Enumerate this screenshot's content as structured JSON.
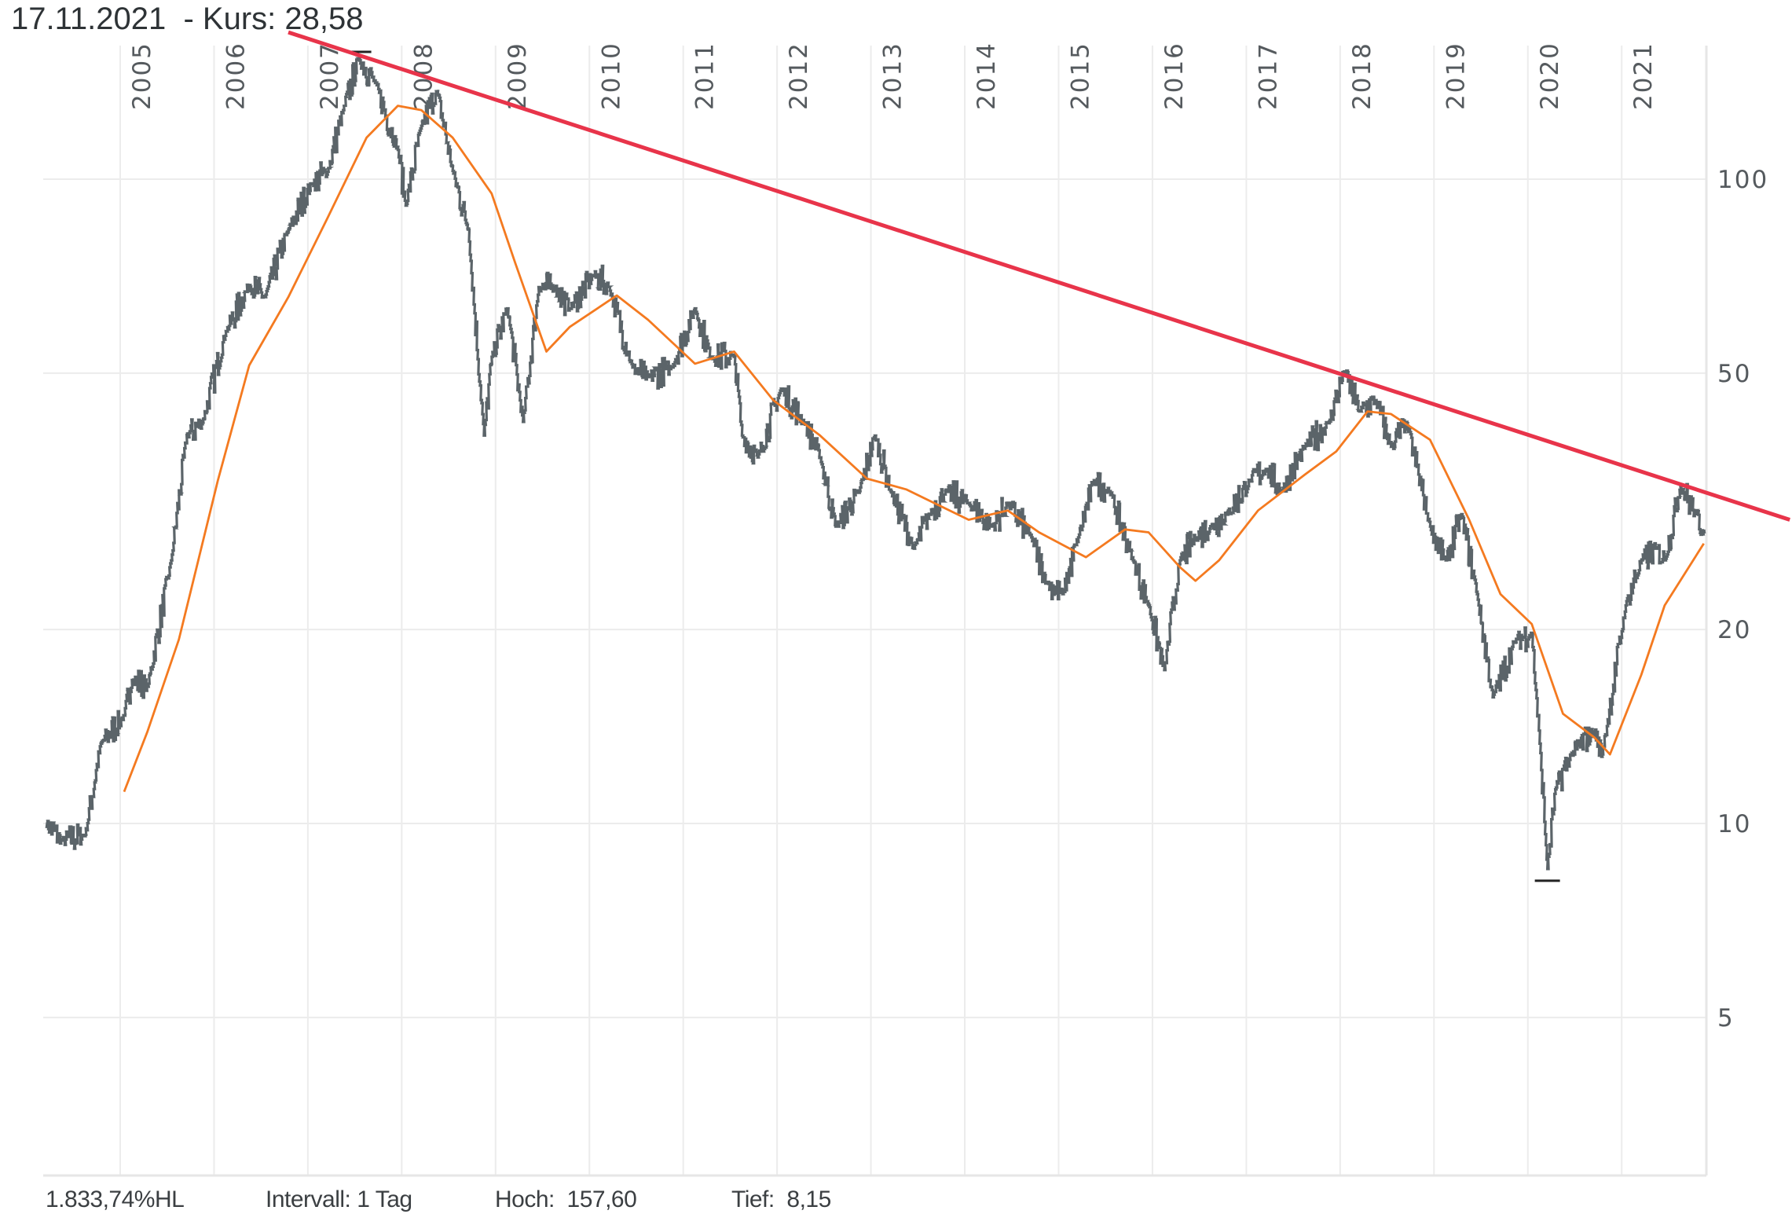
{
  "header": {
    "title": "17.11.2021  - Kurs: 28,58"
  },
  "footer": {
    "performance": "1.833,74%HL",
    "interval": "Intervall: 1 Tag",
    "high": "Hoch:  157,60",
    "low": "Tief:  8,15"
  },
  "colors": {
    "price": "#5b6469",
    "moving_average": "#f47a20",
    "trendline": "#e8344a",
    "grid": "#ececec",
    "text": "#555a5e"
  },
  "chart_data": {
    "type": "line",
    "title": "",
    "xlabel": "",
    "ylabel": "",
    "y_scale": "log",
    "ylim": [
      2.84,
      161
    ],
    "xlim": [
      "2004-03",
      "2021-11-17"
    ],
    "grid": true,
    "y_axis_position": "right",
    "x_ticks": [
      "2005",
      "2006",
      "2007",
      "2008",
      "2009",
      "2010",
      "2011",
      "2012",
      "2013",
      "2014",
      "2015",
      "2016",
      "2017",
      "2018",
      "2019",
      "2020",
      "2021"
    ],
    "y_ticks": [
      100,
      50,
      20,
      10,
      5
    ],
    "high_marker": {
      "date": "2007-07",
      "value": 157.6
    },
    "low_marker": {
      "date": "2020-03",
      "value": 8.15
    },
    "series": [
      {
        "role": "price",
        "points": [
          [
            "2004-03",
            10.0
          ],
          [
            "2004-05",
            9.4
          ],
          [
            "2004-08",
            9.6
          ],
          [
            "2004-10",
            13.3
          ],
          [
            "2005-01",
            14.7
          ],
          [
            "2005-02",
            16.7
          ],
          [
            "2005-04",
            16.3
          ],
          [
            "2005-07",
            25.6
          ],
          [
            "2005-09",
            40.1
          ],
          [
            "2005-11",
            41.9
          ],
          [
            "2006-02",
            58
          ],
          [
            "2006-05",
            68.5
          ],
          [
            "2006-07",
            65.6
          ],
          [
            "2006-10",
            83.5
          ],
          [
            "2007-01",
            98.5
          ],
          [
            "2007-03",
            102.7
          ],
          [
            "2007-05",
            128
          ],
          [
            "2007-07",
            154
          ],
          [
            "2007-09",
            142
          ],
          [
            "2007-12",
            111
          ],
          [
            "2008-01",
            91
          ],
          [
            "2008-03",
            121
          ],
          [
            "2008-05",
            137
          ],
          [
            "2008-07",
            103
          ],
          [
            "2008-09",
            83.5
          ],
          [
            "2008-11",
            40
          ],
          [
            "2008-12",
            53
          ],
          [
            "2009-02",
            63
          ],
          [
            "2009-04",
            42
          ],
          [
            "2009-06",
            68
          ],
          [
            "2009-08",
            68
          ],
          [
            "2009-10",
            63
          ],
          [
            "2010-01",
            71
          ],
          [
            "2010-03",
            68
          ],
          [
            "2010-06",
            51
          ],
          [
            "2010-08",
            49.3
          ],
          [
            "2010-11",
            51
          ],
          [
            "2011-02",
            63
          ],
          [
            "2011-04",
            53
          ],
          [
            "2011-07",
            53
          ],
          [
            "2011-08",
            40
          ],
          [
            "2011-10",
            37
          ],
          [
            "2012-01",
            47.3
          ],
          [
            "2012-04",
            41.8
          ],
          [
            "2012-06",
            37
          ],
          [
            "2012-08",
            28.9
          ],
          [
            "2012-11",
            32.8
          ],
          [
            "2013-01",
            40
          ],
          [
            "2013-03",
            32.8
          ],
          [
            "2013-06",
            26.7
          ],
          [
            "2013-08",
            30.2
          ],
          [
            "2013-10",
            32.8
          ],
          [
            "2014-01",
            31.4
          ],
          [
            "2014-04",
            28.9
          ],
          [
            "2014-06",
            31.4
          ],
          [
            "2014-09",
            27.8
          ],
          [
            "2014-11",
            23.6
          ],
          [
            "2015-01",
            22.7
          ],
          [
            "2015-03",
            27.8
          ],
          [
            "2015-05",
            34.1
          ],
          [
            "2015-07",
            32.8
          ],
          [
            "2015-10",
            25.6
          ],
          [
            "2015-12",
            21.8
          ],
          [
            "2016-02",
            17.3
          ],
          [
            "2016-04",
            25.6
          ],
          [
            "2016-06",
            27.8
          ],
          [
            "2016-08",
            28.9
          ],
          [
            "2016-10",
            30.2
          ],
          [
            "2017-01",
            34.1
          ],
          [
            "2017-03",
            35.5
          ],
          [
            "2017-05",
            32.8
          ],
          [
            "2017-08",
            38.5
          ],
          [
            "2017-11",
            41.8
          ],
          [
            "2018-01",
            50.3
          ],
          [
            "2018-03",
            43.6
          ],
          [
            "2018-05",
            45.4
          ],
          [
            "2018-07",
            38.5
          ],
          [
            "2018-09",
            41.8
          ],
          [
            "2018-12",
            28.9
          ],
          [
            "2019-02",
            25.6
          ],
          [
            "2019-04",
            30.2
          ],
          [
            "2019-06",
            22.7
          ],
          [
            "2019-08",
            15.7
          ],
          [
            "2019-11",
            19.3
          ],
          [
            "2020-01",
            19.7
          ],
          [
            "2020-02",
            13.3
          ],
          [
            "2020-03",
            8.5
          ],
          [
            "2020-04",
            11.3
          ],
          [
            "2020-06",
            12.8
          ],
          [
            "2020-09",
            13.9
          ],
          [
            "2020-10",
            12.8
          ],
          [
            "2021-01",
            21.8
          ],
          [
            "2021-03",
            25.6
          ],
          [
            "2021-05",
            26.7
          ],
          [
            "2021-06",
            25.6
          ],
          [
            "2021-08",
            33.4
          ],
          [
            "2021-10",
            30.2
          ],
          [
            "2021-11-17",
            28.58
          ]
        ]
      },
      {
        "role": "moving_average",
        "points": [
          [
            "2005-01",
            11.2
          ],
          [
            "2005-04",
            13.9
          ],
          [
            "2005-08",
            19.3
          ],
          [
            "2006-01",
            34.1
          ],
          [
            "2006-05",
            51.4
          ],
          [
            "2006-10",
            65.6
          ],
          [
            "2007-03",
            87
          ],
          [
            "2007-08",
            116
          ],
          [
            "2007-12",
            130
          ],
          [
            "2008-03",
            128
          ],
          [
            "2008-07",
            116
          ],
          [
            "2008-12",
            95
          ],
          [
            "2009-03",
            74.2
          ],
          [
            "2009-07",
            54
          ],
          [
            "2009-10",
            59
          ],
          [
            "2010-04",
            66
          ],
          [
            "2010-08",
            60.5
          ],
          [
            "2011-02",
            51.7
          ],
          [
            "2011-07",
            54
          ],
          [
            "2011-12",
            45.4
          ],
          [
            "2012-06",
            40
          ],
          [
            "2012-12",
            34.3
          ],
          [
            "2013-05",
            33
          ],
          [
            "2014-01",
            29.6
          ],
          [
            "2014-06",
            30.6
          ],
          [
            "2014-10",
            28.3
          ],
          [
            "2015-04",
            25.9
          ],
          [
            "2015-09",
            28.6
          ],
          [
            "2015-12",
            28.3
          ],
          [
            "2016-04",
            25
          ],
          [
            "2016-06",
            23.8
          ],
          [
            "2016-09",
            25.6
          ],
          [
            "2017-02",
            30.6
          ],
          [
            "2017-08",
            34.8
          ],
          [
            "2017-12",
            37.8
          ],
          [
            "2018-04",
            43.6
          ],
          [
            "2018-07",
            43.2
          ],
          [
            "2018-12",
            39.4
          ],
          [
            "2019-05",
            29.6
          ],
          [
            "2019-09",
            22.7
          ],
          [
            "2020-01",
            20.4
          ],
          [
            "2020-05",
            14.8
          ],
          [
            "2020-09",
            13.6
          ],
          [
            "2020-11",
            12.8
          ],
          [
            "2021-03",
            17
          ],
          [
            "2021-06",
            21.8
          ],
          [
            "2021-11",
            27.2
          ]
        ]
      },
      {
        "role": "trendline",
        "points": [
          [
            "2006-10",
            169
          ],
          [
            "2022-10",
            29.6
          ]
        ]
      }
    ]
  }
}
